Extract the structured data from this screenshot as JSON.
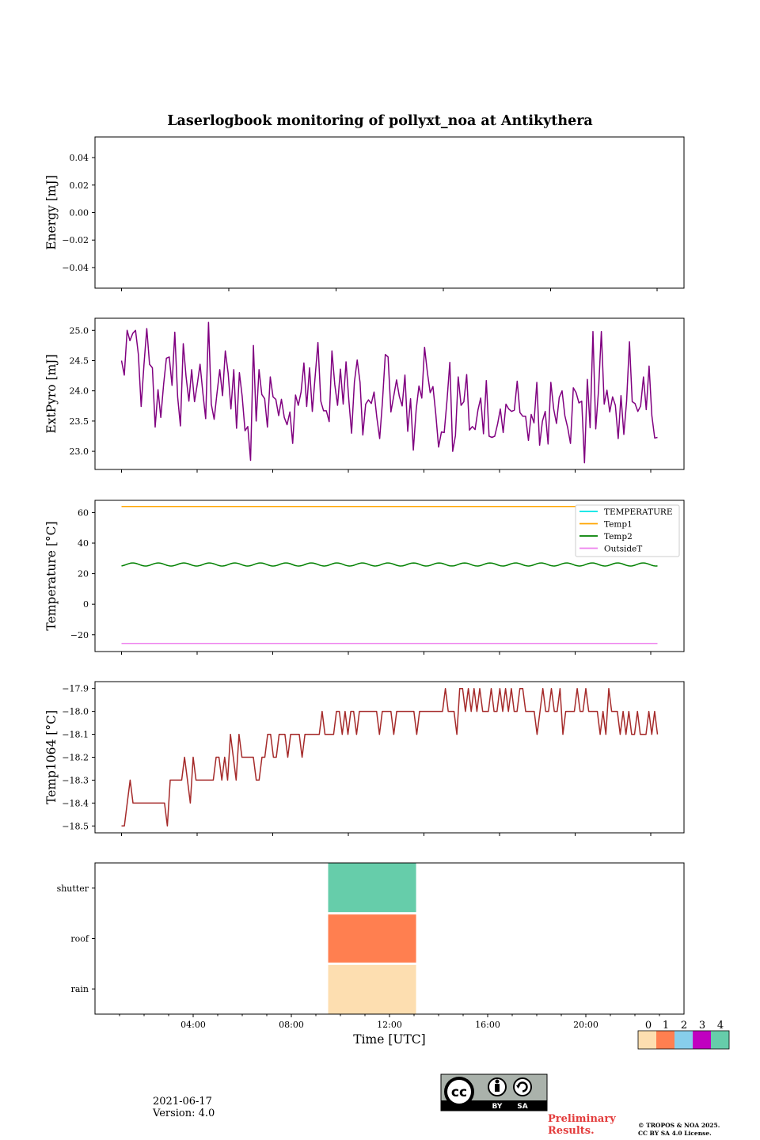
{
  "figure": {
    "title": "Laserlogbook monitoring of pollyxt_noa at Antikythera",
    "date": "2021-06-17",
    "version": "Version: 4.0",
    "preliminary": "Preliminary\nResults.",
    "copyright_line1": "© TROPOS & NOA 2025.",
    "copyright_line2": "CC BY SA 4.0 License.",
    "license_badge": {
      "cc": "cc",
      "by": "BY",
      "sa": "SA"
    }
  },
  "colors": {
    "extpyro": "#800080",
    "temperature": "#00e5e5",
    "temp1": "#ffa500",
    "temp2": "#008000",
    "outsidet": "#ee82ee",
    "temp1064": "#a52a2a",
    "status_0": "#fddeb0",
    "status_1": "#ff7f50",
    "status_2": "#87ceeb",
    "status_3": "#c000c0",
    "status_4": "#66cdaa",
    "preliminary": "#e33b3b"
  },
  "chart_data": [
    {
      "id": "energy",
      "type": "line",
      "title": "Laserlogbook monitoring of pollyxt_noa at Antikythera",
      "xlabel": "",
      "ylabel": "Energy [mJ]",
      "ylim": [
        -0.055,
        0.055
      ],
      "yticks": [
        0.04,
        0.02,
        0.0,
        -0.02,
        -0.04
      ],
      "ytick_labels": [
        "0.04",
        "0.02",
        "0.00",
        "−0.02",
        "−0.04"
      ],
      "series": []
    },
    {
      "id": "extpyro",
      "type": "line",
      "xlabel": "",
      "ylabel": "ExtPyro [mJ]",
      "ylim": [
        22.7,
        25.2
      ],
      "yticks": [
        25.0,
        24.5,
        24.0,
        23.5,
        23.0
      ],
      "ytick_labels": [
        "25.0",
        "24.5",
        "24.0",
        "23.5",
        "23.0"
      ],
      "x_start": "01:03",
      "x_end": "23:06",
      "series": [
        {
          "values": [
            24.5,
            24.26,
            25.0,
            24.83,
            24.95,
            25.0,
            24.6,
            23.74,
            24.44,
            25.03,
            24.44,
            24.38,
            23.4,
            24.02,
            23.56,
            24.11,
            24.54,
            24.56,
            24.09,
            24.97,
            23.9,
            23.42,
            24.78,
            24.24,
            23.83,
            24.35,
            23.82,
            24.11,
            24.44,
            23.96,
            23.54,
            25.13,
            23.78,
            23.53,
            23.95,
            24.35,
            23.92,
            24.66,
            24.29,
            23.7,
            24.35,
            23.38,
            24.3,
            23.91,
            23.34,
            23.41,
            22.85,
            24.75,
            23.5,
            24.35,
            23.94,
            23.87,
            23.4,
            24.23,
            23.9,
            23.86,
            23.59,
            23.86,
            23.56,
            23.44,
            23.65,
            23.13,
            23.93,
            23.76,
            23.98,
            24.46,
            23.74,
            24.38,
            23.66,
            24.24,
            24.8,
            23.83,
            23.67,
            23.67,
            23.49,
            24.66,
            24.1,
            23.76,
            24.36,
            23.78,
            24.48,
            23.85,
            23.3,
            24.15,
            24.51,
            24.14,
            23.27,
            23.78,
            23.85,
            23.79,
            23.98,
            23.56,
            23.21,
            23.82,
            24.6,
            24.56,
            23.65,
            23.91,
            24.18,
            23.91,
            23.75,
            24.26,
            23.33,
            23.87,
            23.02,
            23.69,
            24.08,
            23.88,
            24.72,
            24.3,
            23.97,
            24.07,
            23.61,
            23.07,
            23.32,
            23.31,
            23.85,
            24.47,
            23.0,
            23.26,
            24.23,
            23.76,
            23.82,
            24.27,
            23.35,
            23.41,
            23.36,
            23.68,
            23.88,
            23.29,
            24.17,
            23.25,
            23.23,
            23.25,
            23.45,
            23.7,
            23.31,
            23.78,
            23.7,
            23.66,
            23.68,
            24.16,
            23.64,
            23.58,
            23.58,
            23.18,
            23.61,
            23.47,
            24.14,
            23.1,
            23.5,
            23.66,
            23.12,
            24.14,
            23.7,
            23.46,
            23.89,
            24.0,
            23.59,
            23.39,
            23.13,
            24.05,
            23.97,
            23.8,
            23.83,
            22.81,
            24.19,
            23.39,
            24.98,
            23.37,
            24.02,
            24.98,
            23.78,
            24.01,
            23.65,
            23.9,
            23.76,
            23.21,
            23.92,
            23.28,
            23.83,
            24.81,
            23.82,
            23.79,
            23.66,
            23.75,
            24.23,
            23.69,
            24.41,
            23.59,
            23.22,
            23.23
          ]
        }
      ]
    },
    {
      "id": "temperature",
      "type": "line",
      "xlabel": "",
      "ylabel": "Temperature [°C]",
      "ylim": [
        -31,
        68
      ],
      "yticks": [
        60,
        40,
        20,
        0,
        -20
      ],
      "ytick_labels": [
        "60",
        "40",
        "20",
        "0",
        "−20"
      ],
      "legend_position": "top-right",
      "x_start": "01:03",
      "x_end": "23:06",
      "series": [
        {
          "name": "TEMPERATURE",
          "constant": null
        },
        {
          "name": "Temp1",
          "constant": 64.0,
          "x_end": "20:00"
        },
        {
          "name": "Temp2",
          "mean": 26.0,
          "amplitude": 1.0,
          "cycles": 21
        },
        {
          "name": "OutsideT",
          "constant": -25.7
        }
      ]
    },
    {
      "id": "temp1064",
      "type": "line",
      "xlabel": "",
      "ylabel": "Temp1064 [°C]",
      "ylim": [
        -18.53,
        -17.87
      ],
      "yticks": [
        -17.9,
        -18.0,
        -18.1,
        -18.2,
        -18.3,
        -18.4,
        -18.5
      ],
      "ytick_labels": [
        "−17.9",
        "−18.0",
        "−18.1",
        "−18.2",
        "−18.3",
        "−18.4",
        "−18.5"
      ],
      "x_start": "01:03",
      "x_end": "23:06",
      "series": [
        {
          "values": [
            -18.5,
            -18.5,
            -18.4,
            -18.3,
            -18.4,
            -18.4,
            -18.4,
            -18.4,
            -18.4,
            -18.4,
            -18.4,
            -18.4,
            -18.4,
            -18.4,
            -18.4,
            -18.4,
            -18.5,
            -18.3,
            -18.3,
            -18.3,
            -18.3,
            -18.3,
            -18.2,
            -18.3,
            -18.4,
            -18.2,
            -18.3,
            -18.3,
            -18.3,
            -18.3,
            -18.3,
            -18.3,
            -18.3,
            -18.2,
            -18.2,
            -18.3,
            -18.2,
            -18.3,
            -18.1,
            -18.2,
            -18.3,
            -18.1,
            -18.2,
            -18.2,
            -18.2,
            -18.2,
            -18.2,
            -18.3,
            -18.3,
            -18.2,
            -18.2,
            -18.1,
            -18.1,
            -18.2,
            -18.2,
            -18.1,
            -18.1,
            -18.1,
            -18.2,
            -18.1,
            -18.1,
            -18.1,
            -18.1,
            -18.2,
            -18.1,
            -18.1,
            -18.1,
            -18.1,
            -18.1,
            -18.1,
            -18.0,
            -18.1,
            -18.1,
            -18.1,
            -18.1,
            -18.0,
            -18.0,
            -18.1,
            -18.0,
            -18.1,
            -18.0,
            -18.0,
            -18.1,
            -18.0,
            -18.0,
            -18.0,
            -18.0,
            -18.0,
            -18.0,
            -18.0,
            -18.1,
            -18.0,
            -18.0,
            -18.0,
            -18.0,
            -18.1,
            -18.0,
            -18.0,
            -18.0,
            -18.0,
            -18.0,
            -18.0,
            -18.0,
            -18.1,
            -18.0,
            -18.0,
            -18.0,
            -18.0,
            -18.0,
            -18.0,
            -18.0,
            -18.0,
            -18.0,
            -17.9,
            -18.0,
            -18.0,
            -18.0,
            -18.1,
            -17.9,
            -17.9,
            -18.0,
            -17.9,
            -18.0,
            -17.9,
            -18.0,
            -17.9,
            -18.0,
            -18.0,
            -18.0,
            -17.9,
            -18.0,
            -18.0,
            -17.9,
            -18.0,
            -17.9,
            -18.0,
            -17.9,
            -18.0,
            -18.0,
            -17.9,
            -17.9,
            -18.0,
            -18.0,
            -18.0,
            -18.0,
            -18.1,
            -18.0,
            -17.9,
            -18.0,
            -18.0,
            -17.9,
            -18.0,
            -18.0,
            -17.9,
            -18.1,
            -18.0,
            -18.0,
            -18.0,
            -18.0,
            -17.9,
            -18.0,
            -18.0,
            -17.9,
            -18.0,
            -18.0,
            -18.0,
            -18.0,
            -18.1,
            -18.0,
            -18.1,
            -17.9,
            -18.0,
            -18.0,
            -18.0,
            -18.1,
            -18.0,
            -18.1,
            -18.0,
            -18.1,
            -18.1,
            -18.0,
            -18.1,
            -18.1,
            -18.1,
            -18.0,
            -18.1,
            -18.0,
            -18.1
          ]
        }
      ]
    },
    {
      "id": "status",
      "type": "heatmap",
      "xlabel": "Time [UTC]",
      "ylabel": "",
      "xlim_hours": [
        0,
        24
      ],
      "xticks": [
        "04:00",
        "08:00",
        "12:00",
        "16:00",
        "20:00"
      ],
      "categories": [
        "shutter",
        "roof",
        "rain"
      ],
      "blocks": [
        {
          "row": "shutter",
          "start": "09:30",
          "end": "13:05",
          "status": 4
        },
        {
          "row": "roof",
          "start": "09:30",
          "end": "13:05",
          "status": 1
        },
        {
          "row": "rain",
          "start": "09:30",
          "end": "13:05",
          "status": 0
        }
      ],
      "colorbar_labels": [
        "0",
        "1",
        "2",
        "3",
        "4"
      ]
    }
  ]
}
